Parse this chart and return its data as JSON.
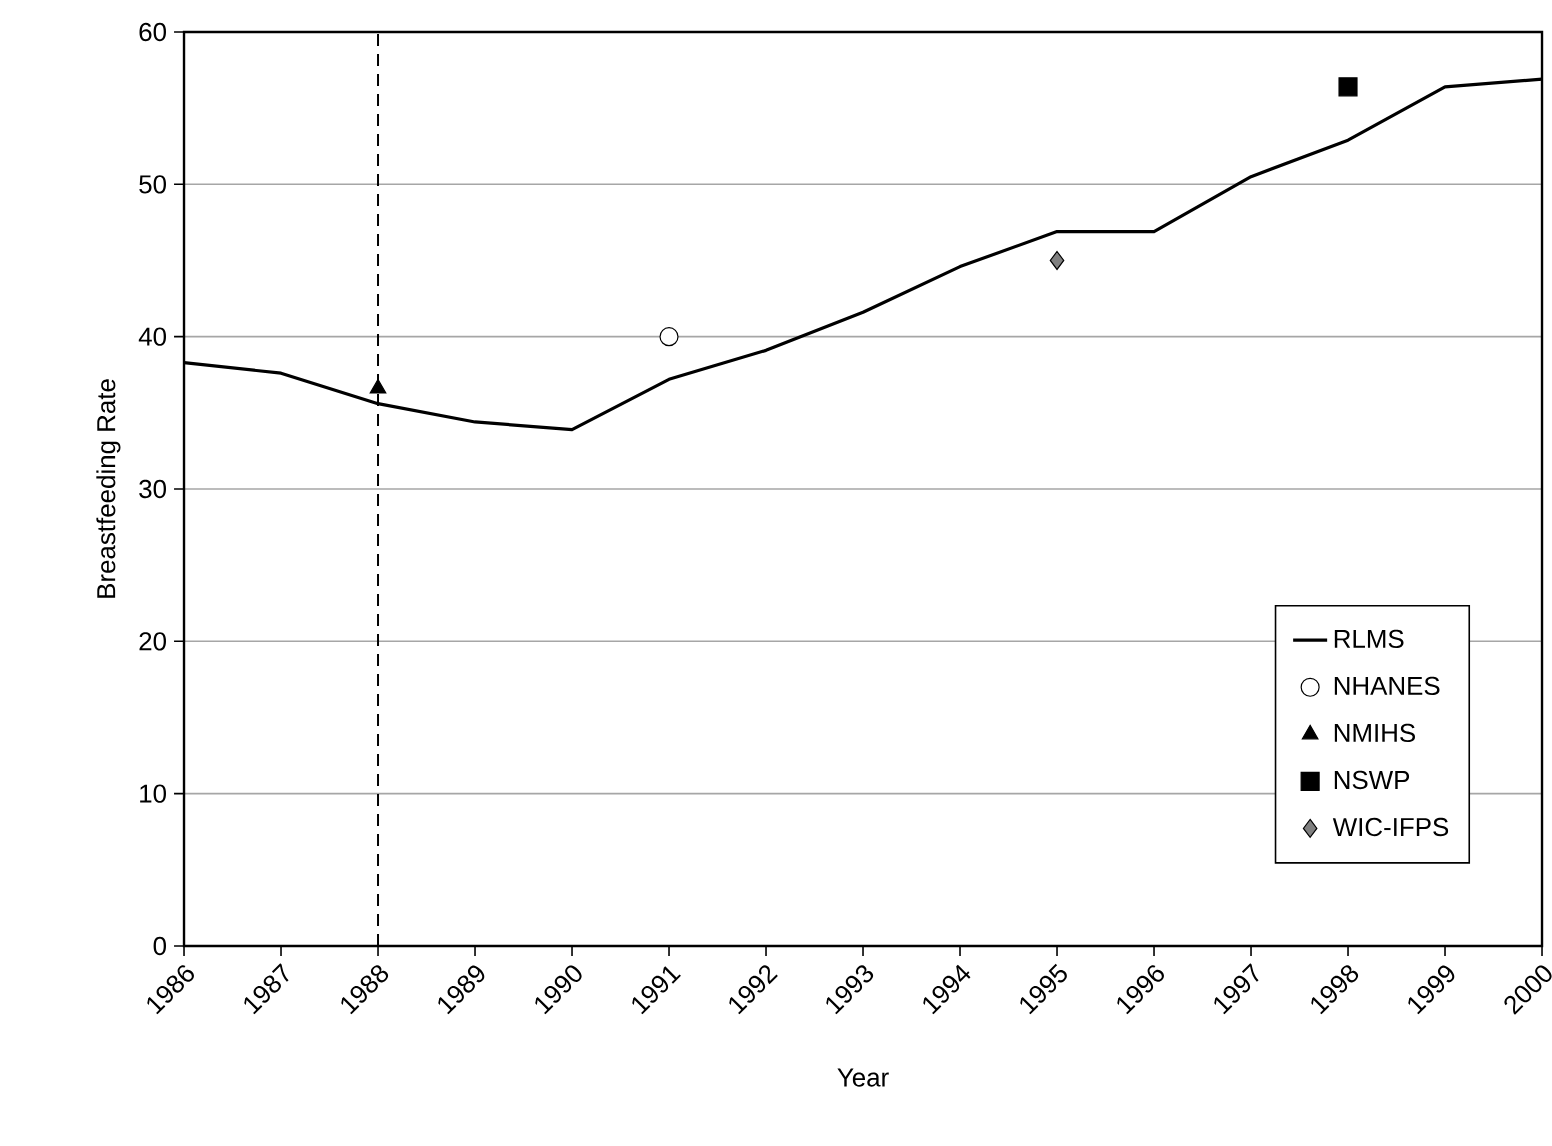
{
  "chart_data": {
    "type": "line",
    "xlabel": "Year",
    "ylabel": "Breastfeeding Rate",
    "xlim": [
      1986,
      2000
    ],
    "xticks": [
      1986,
      1987,
      1988,
      1989,
      1990,
      1991,
      1992,
      1993,
      1994,
      1995,
      1996,
      1997,
      1998,
      1999,
      2000
    ],
    "ylim": [
      0,
      60
    ],
    "yticks": [
      0,
      10,
      20,
      30,
      40,
      50,
      60
    ],
    "grid": "y",
    "legend": "bottom right",
    "ref_lines": [
      {
        "axis": "x",
        "value": 1988,
        "color": "#000000",
        "line_style": "dashed"
      }
    ],
    "series": [
      {
        "name": "RLMS",
        "color": "#000000",
        "marker": "none",
        "x": [
          1986,
          1987,
          1988,
          1989,
          1990,
          1991,
          1992,
          1993,
          1994,
          1995,
          1996,
          1997,
          1998,
          1999,
          2000
        ],
        "values": [
          38.3,
          37.6,
          35.6,
          34.4,
          33.9,
          37.2,
          39.1,
          41.6,
          44.6,
          46.9,
          46.9,
          50.5,
          52.9,
          56.4,
          56.9
        ]
      },
      {
        "name": "NHANES",
        "type": "scatter",
        "color": "#ffffff",
        "marker": "circle",
        "x": [
          1991
        ],
        "values": [
          40
        ]
      },
      {
        "name": "NMIHS",
        "type": "scatter",
        "color": "#000000",
        "marker": "triangle",
        "x": [
          1988
        ],
        "values": [
          36.6
        ]
      },
      {
        "name": "NSWP",
        "type": "scatter",
        "color": "#000000",
        "marker": "square",
        "x": [
          1998
        ],
        "values": [
          56.4
        ]
      },
      {
        "name": "WIC-IFPS",
        "type": "scatter",
        "color": "#808080",
        "marker": "diamond",
        "x": [
          1995
        ],
        "values": [
          45
        ]
      }
    ]
  }
}
